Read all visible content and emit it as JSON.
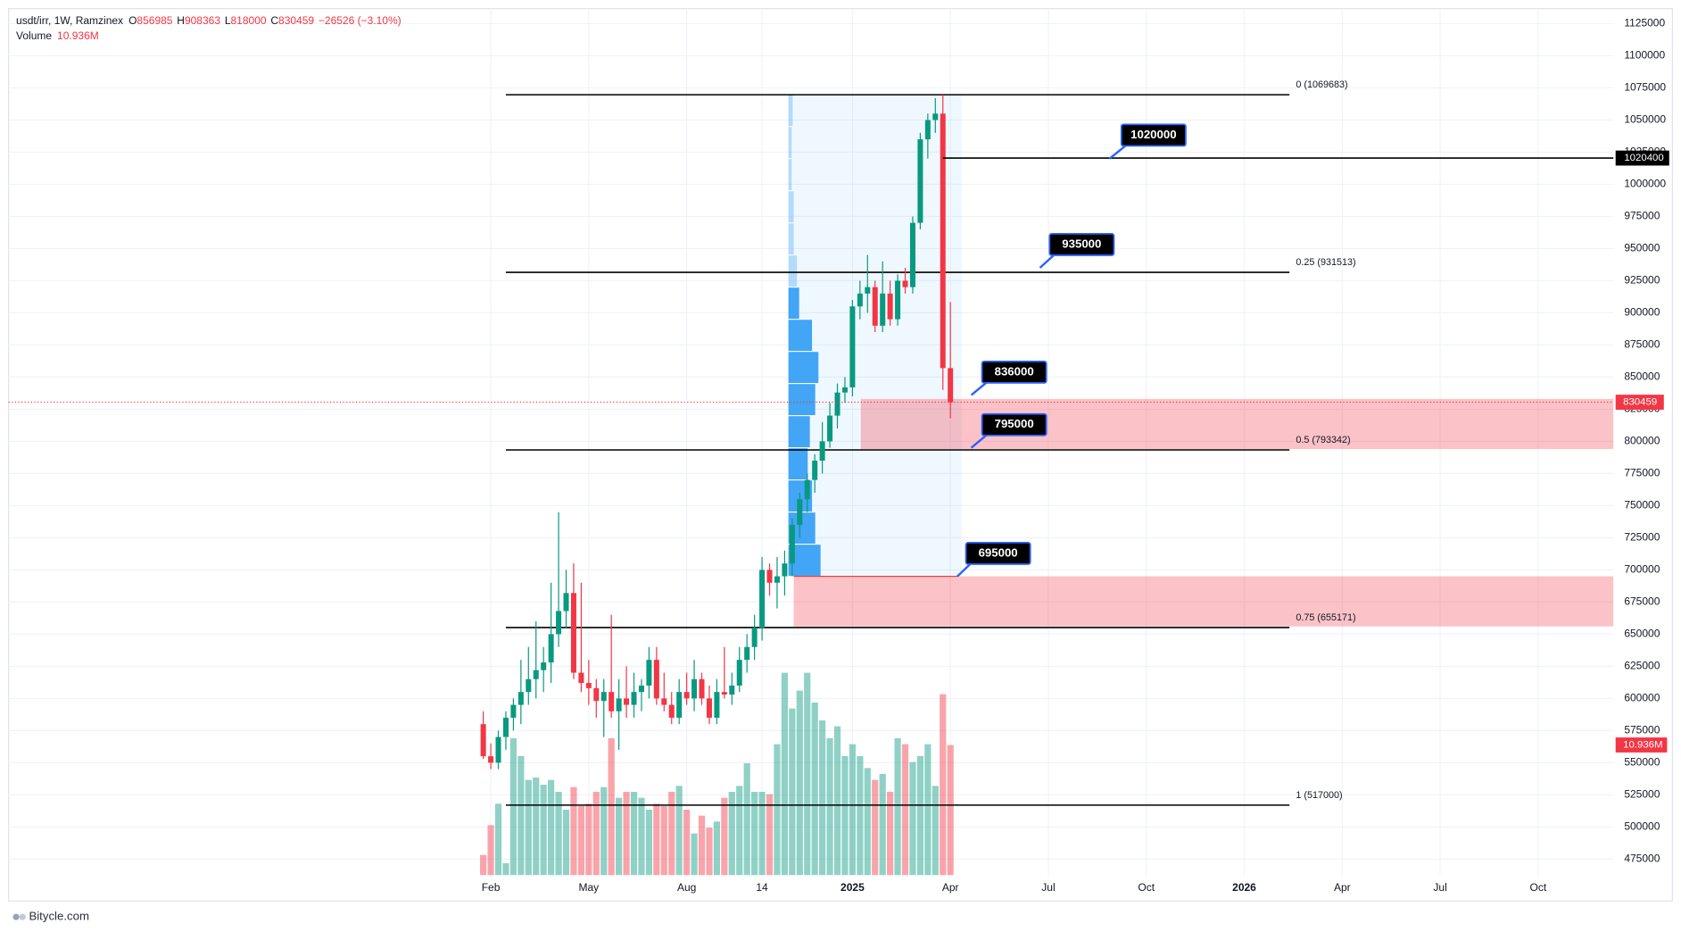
{
  "chart_data": {
    "type": "candlestick",
    "symbol": "usdt/irr, 1W, Ramzinex",
    "ohlc_labels": [
      "O",
      "H",
      "L",
      "C"
    ],
    "change_label": "−26526 (−3.10%)",
    "x": [
      -1,
      0,
      1,
      2,
      3,
      4,
      5,
      6,
      7,
      8,
      9,
      10,
      11,
      12,
      13,
      14,
      15,
      16,
      17,
      18,
      19,
      20,
      21,
      22,
      23,
      24,
      25,
      26,
      27,
      28,
      29,
      30,
      31,
      32,
      33,
      34,
      35,
      36,
      37,
      38,
      39,
      40,
      41,
      42,
      43,
      44,
      45,
      46,
      47,
      48,
      49,
      50,
      51,
      52,
      53,
      54,
      55,
      56,
      57,
      58,
      59,
      60,
      61
    ],
    "open": [
      580000,
      555000,
      550000,
      570000,
      585000,
      595000,
      605000,
      615000,
      622000,
      628000,
      650000,
      668000,
      682000,
      620000,
      612000,
      608000,
      598000,
      605000,
      590000,
      600000,
      595000,
      605000,
      610000,
      630000,
      600000,
      595000,
      585000,
      605000,
      600000,
      615000,
      600000,
      585000,
      605000,
      603000,
      610000,
      630000,
      640000,
      655000,
      700000,
      690000,
      695000,
      705000,
      735000,
      755000,
      770000,
      785000,
      800000,
      820000,
      838000,
      842000,
      905000,
      915000,
      920000,
      890000,
      915000,
      895000,
      925000,
      920000,
      970000,
      1035000,
      1050000,
      1055000,
      856985
    ],
    "high": [
      590000,
      565000,
      575000,
      590000,
      600000,
      630000,
      640000,
      660000,
      640000,
      690000,
      745000,
      700000,
      705000,
      690000,
      630000,
      615000,
      615000,
      665000,
      615000,
      625000,
      620000,
      615000,
      640000,
      640000,
      620000,
      605000,
      615000,
      620000,
      630000,
      620000,
      610000,
      615000,
      640000,
      620000,
      640000,
      650000,
      665000,
      710000,
      705000,
      710000,
      715000,
      740000,
      760000,
      775000,
      790000,
      815000,
      830000,
      845000,
      850000,
      910000,
      925000,
      945000,
      925000,
      940000,
      925000,
      930000,
      935000,
      975000,
      1040000,
      1055000,
      1067000,
      1069683,
      908363
    ],
    "low": [
      553000,
      545000,
      545000,
      560000,
      575000,
      580000,
      595000,
      600000,
      605000,
      612000,
      640000,
      655000,
      615000,
      605000,
      595000,
      585000,
      570000,
      585000,
      560000,
      585000,
      585000,
      590000,
      600000,
      595000,
      590000,
      580000,
      580000,
      595000,
      590000,
      595000,
      580000,
      580000,
      600000,
      595000,
      605000,
      620000,
      630000,
      645000,
      680000,
      670000,
      680000,
      695000,
      725000,
      745000,
      760000,
      775000,
      795000,
      810000,
      830000,
      835000,
      895000,
      900000,
      885000,
      885000,
      890000,
      890000,
      915000,
      915000,
      965000,
      1020000,
      1040000,
      840000,
      818000
    ],
    "close": [
      555000,
      550000,
      570000,
      585000,
      595000,
      605000,
      615000,
      622000,
      628000,
      650000,
      668000,
      682000,
      620000,
      612000,
      608000,
      598000,
      605000,
      590000,
      600000,
      595000,
      605000,
      610000,
      630000,
      600000,
      595000,
      585000,
      605000,
      600000,
      615000,
      600000,
      585000,
      605000,
      603000,
      610000,
      630000,
      640000,
      655000,
      700000,
      690000,
      695000,
      705000,
      735000,
      755000,
      770000,
      785000,
      800000,
      820000,
      838000,
      842000,
      905000,
      915000,
      920000,
      890000,
      915000,
      895000,
      925000,
      920000,
      970000,
      1035000,
      1050000,
      1055000,
      856985,
      830459
    ],
    "volume": {
      "name": "Volume",
      "values": [
        1.7,
        4.2,
        6.0,
        1.0,
        11.5,
        10.0,
        8.0,
        8.2,
        7.6,
        8.0,
        7.0,
        5.5,
        7.4,
        5.8,
        6.0,
        7.0,
        7.4,
        11.5,
        6.5,
        7.0,
        7.0,
        6.5,
        5.5,
        6.0,
        5.8,
        7.0,
        7.5,
        5.5,
        3.5,
        5.0,
        4.0,
        4.5,
        6.5,
        7.0,
        7.5,
        9.4,
        7.0,
        7.0,
        6.8,
        11.0,
        17.0,
        14.0,
        15.5,
        17.0,
        14.5,
        13.0,
        11.5,
        12.5,
        10.0,
        11.0,
        10.0,
        9.0,
        8.0,
        8.5,
        7.0,
        11.5,
        11.0,
        9.5,
        10.0,
        11.0,
        7.5,
        15.2,
        10.936
      ],
      "last_label": "10.936M"
    },
    "up_color": "#089981",
    "down_color": "#f23645",
    "xlim": [
      -64,
      149
    ],
    "xticks": [
      {
        "value": 0,
        "label": "Feb"
      },
      {
        "value": 13,
        "label": "May"
      },
      {
        "value": 26,
        "label": "Aug"
      },
      {
        "value": 36,
        "label": "14"
      },
      {
        "value": 48,
        "label": "2025"
      },
      {
        "value": 61,
        "label": "Apr"
      },
      {
        "value": 74,
        "label": "Jul"
      },
      {
        "value": 87,
        "label": "Oct"
      },
      {
        "value": 100,
        "label": "2026"
      },
      {
        "value": 113,
        "label": "Apr"
      },
      {
        "value": 126,
        "label": "Jul"
      },
      {
        "value": 139,
        "label": "Oct"
      }
    ],
    "ylim": [
      462500,
      1136700
    ],
    "yticks": [
      475000,
      500000,
      525000,
      550000,
      575000,
      600000,
      625000,
      650000,
      675000,
      700000,
      725000,
      750000,
      775000,
      800000,
      825000,
      850000,
      875000,
      900000,
      925000,
      950000,
      975000,
      1000000,
      1025000,
      1050000,
      1075000,
      1100000,
      1125000
    ],
    "grid": true,
    "fib_levels": [
      {
        "label": "0 (1069683)",
        "value": 1069683
      },
      {
        "label": "0.25 (931513)",
        "value": 931513
      },
      {
        "label": "0.5 (793342)",
        "value": 793342
      },
      {
        "label": "0.75 (655171)",
        "value": 655171
      },
      {
        "label": "1 (517000)",
        "value": 517000
      }
    ],
    "callouts": [
      1020000,
      935000,
      836000,
      795000,
      695000
    ],
    "price_line": 1020400,
    "zones": [
      [
        833000,
        794000
      ],
      [
        695000,
        656000
      ]
    ],
    "volume_profile": {
      "prices": [
        695000,
        720000,
        745000,
        770000,
        795000,
        820000,
        845000,
        870000,
        895000,
        920000,
        945000,
        970000,
        995000,
        1020000,
        1045000
      ],
      "values": [
        30,
        25,
        22,
        18,
        20,
        25,
        28,
        22,
        10,
        8,
        5,
        5,
        3,
        3,
        4
      ]
    },
    "watermark": "Bitycle.com"
  }
}
